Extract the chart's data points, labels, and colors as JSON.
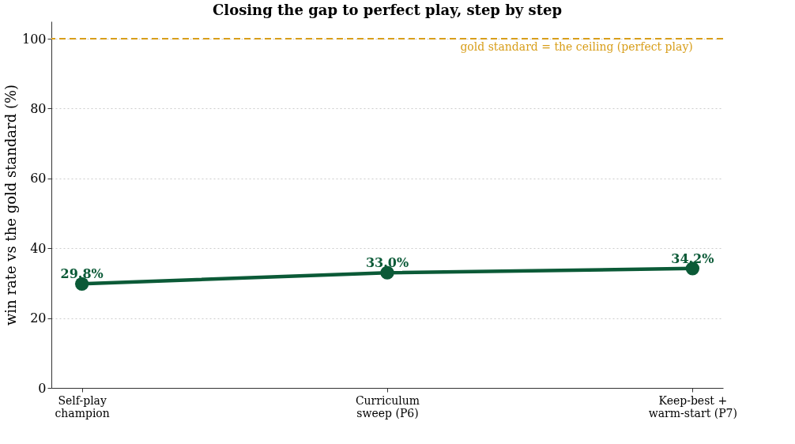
{
  "chart_data": {
    "type": "line",
    "title": "Closing the gap to perfect play, step by step",
    "ylabel": "win rate vs the gold standard (%)",
    "categories": [
      "Self-play champion",
      "Curriculum sweep (P6)",
      "Keep-best + warm-start (P7)"
    ],
    "series": [
      {
        "color": "#0b5a37",
        "values": [
          29.8,
          33.0,
          34.2
        ],
        "value_labels": [
          "29.8%",
          "33.0%",
          "34.2%"
        ]
      }
    ],
    "ylim": [
      0,
      105
    ],
    "yticks": [
      0,
      20,
      40,
      60,
      80,
      100
    ],
    "grid": "y",
    "marker": "circle",
    "line_style": "solid",
    "ref_lines": [
      {
        "axis": "y",
        "value": 100,
        "label": "gold standard = the ceiling (perfect play)",
        "color": "#d89e1a",
        "line_style": "dashed"
      }
    ]
  }
}
